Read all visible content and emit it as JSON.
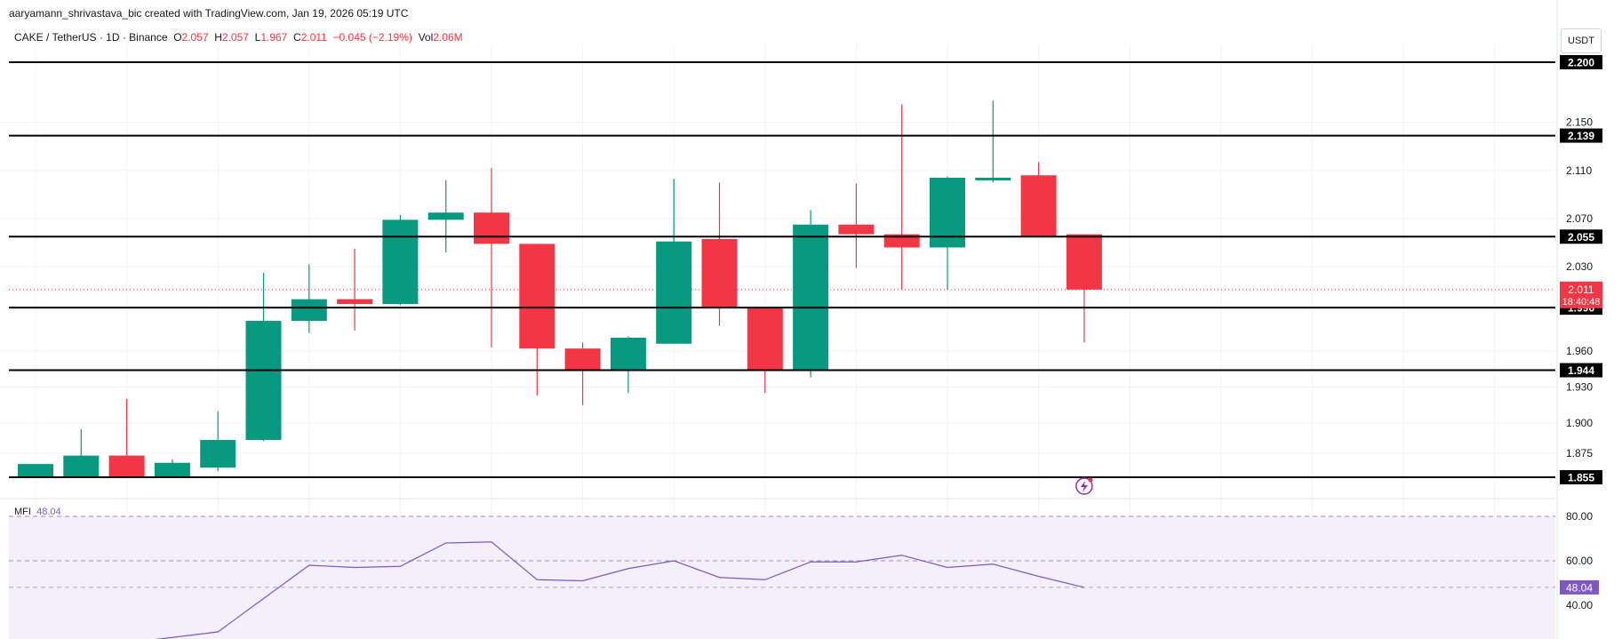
{
  "header": {
    "credit": "aaryamann_shrivastava_bic created with TradingView.com, Jan 19, 2026 05:19 UTC",
    "symbol": "CAKE / TetherUS · 1D · Binance",
    "o_label": "O",
    "o_val": "2.057",
    "h_label": "H",
    "h_val": "2.057",
    "l_label": "L",
    "l_val": "1.967",
    "c_label": "C",
    "c_val": "2.011",
    "change": "−0.045 (−2.19%)",
    "vol_label": "Vol",
    "vol_val": "2.06M",
    "currency": "USDT"
  },
  "colors": {
    "up": "#089981",
    "down": "#f23645",
    "mfi": "#7e57c2",
    "level": "#000000"
  },
  "chart_data": [
    {
      "type": "candlestick",
      "title": "CAKE / TetherUS · 1D · Binance",
      "ylim": [
        1.855,
        2.2
      ],
      "y_ticks": [
        "2.150",
        "2.110",
        "2.070",
        "2.030",
        "1.960",
        "1.930",
        "1.900",
        "1.875"
      ],
      "levels": [
        "2.200",
        "2.139",
        "2.055",
        "1.996",
        "1.944",
        "1.855"
      ],
      "last_price": "2.011",
      "countdown": "18:40:48",
      "candles": [
        {
          "o": 1.855,
          "h": 1.866,
          "l": 1.855,
          "c": 1.866
        },
        {
          "o": 1.855,
          "h": 1.895,
          "l": 1.855,
          "c": 1.873
        },
        {
          "o": 1.873,
          "h": 1.92,
          "l": 1.855,
          "c": 1.855
        },
        {
          "o": 1.855,
          "h": 1.87,
          "l": 1.855,
          "c": 1.867
        },
        {
          "o": 1.863,
          "h": 1.91,
          "l": 1.86,
          "c": 1.886
        },
        {
          "o": 1.886,
          "h": 2.025,
          "l": 1.885,
          "c": 1.985
        },
        {
          "o": 1.985,
          "h": 2.032,
          "l": 1.975,
          "c": 2.003
        },
        {
          "o": 2.003,
          "h": 2.045,
          "l": 1.977,
          "c": 1.999
        },
        {
          "o": 1.999,
          "h": 2.073,
          "l": 1.998,
          "c": 2.069
        },
        {
          "o": 2.069,
          "h": 2.102,
          "l": 2.042,
          "c": 2.075
        },
        {
          "o": 2.075,
          "h": 2.112,
          "l": 1.963,
          "c": 2.049
        },
        {
          "o": 2.049,
          "h": 2.049,
          "l": 1.923,
          "c": 1.962
        },
        {
          "o": 1.962,
          "h": 1.967,
          "l": 1.915,
          "c": 1.944
        },
        {
          "o": 1.944,
          "h": 1.972,
          "l": 1.925,
          "c": 1.971
        },
        {
          "o": 1.966,
          "h": 2.103,
          "l": 1.966,
          "c": 2.051
        },
        {
          "o": 2.053,
          "h": 2.1,
          "l": 1.981,
          "c": 1.996
        },
        {
          "o": 1.996,
          "h": 1.996,
          "l": 1.925,
          "c": 1.944
        },
        {
          "o": 1.944,
          "h": 2.077,
          "l": 1.938,
          "c": 2.065
        },
        {
          "o": 2.065,
          "h": 2.099,
          "l": 2.029,
          "c": 2.057
        },
        {
          "o": 2.057,
          "h": 2.165,
          "l": 2.011,
          "c": 2.046
        },
        {
          "o": 2.046,
          "h": 2.105,
          "l": 2.011,
          "c": 2.104
        },
        {
          "o": 2.102,
          "h": 2.168,
          "l": 2.1,
          "c": 2.104
        },
        {
          "o": 2.106,
          "h": 2.117,
          "l": 2.055,
          "c": 2.055
        },
        {
          "o": 2.057,
          "h": 2.057,
          "l": 1.967,
          "c": 2.011
        }
      ]
    },
    {
      "type": "line",
      "title": "MFI",
      "current": "48.04",
      "ylim": [
        25,
        80
      ],
      "y_ticks": [
        "80.00",
        "60.00",
        "40.00"
      ],
      "band": [
        40,
        80
      ],
      "values": [
        17,
        21,
        23,
        25.5,
        28,
        43,
        58,
        57,
        57.5,
        68,
        68.5,
        51.5,
        51,
        56.5,
        60,
        52.5,
        51.5,
        59.5,
        59.5,
        62.5,
        57,
        58.5,
        53,
        48.04
      ]
    }
  ]
}
